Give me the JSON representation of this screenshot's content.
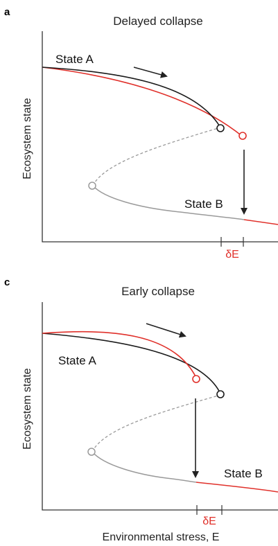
{
  "colors": {
    "black_curve": "#1a1a1a",
    "red_curve": "#e0302a",
    "grey_curve": "#9a9a9a",
    "axis": "#333333",
    "arrow": "#222222"
  },
  "panels": [
    {
      "letter": "a",
      "title": "Delayed collapse",
      "ylabel": "Ecosystem state",
      "state_a": "State A",
      "state_b": "State B",
      "delta": "δE"
    },
    {
      "letter": "c",
      "title": "Early collapse",
      "ylabel": "Ecosystem state",
      "state_a": "State A",
      "state_b": "State B",
      "delta": "δE"
    }
  ],
  "xlabel": "Environmental stress, E"
}
